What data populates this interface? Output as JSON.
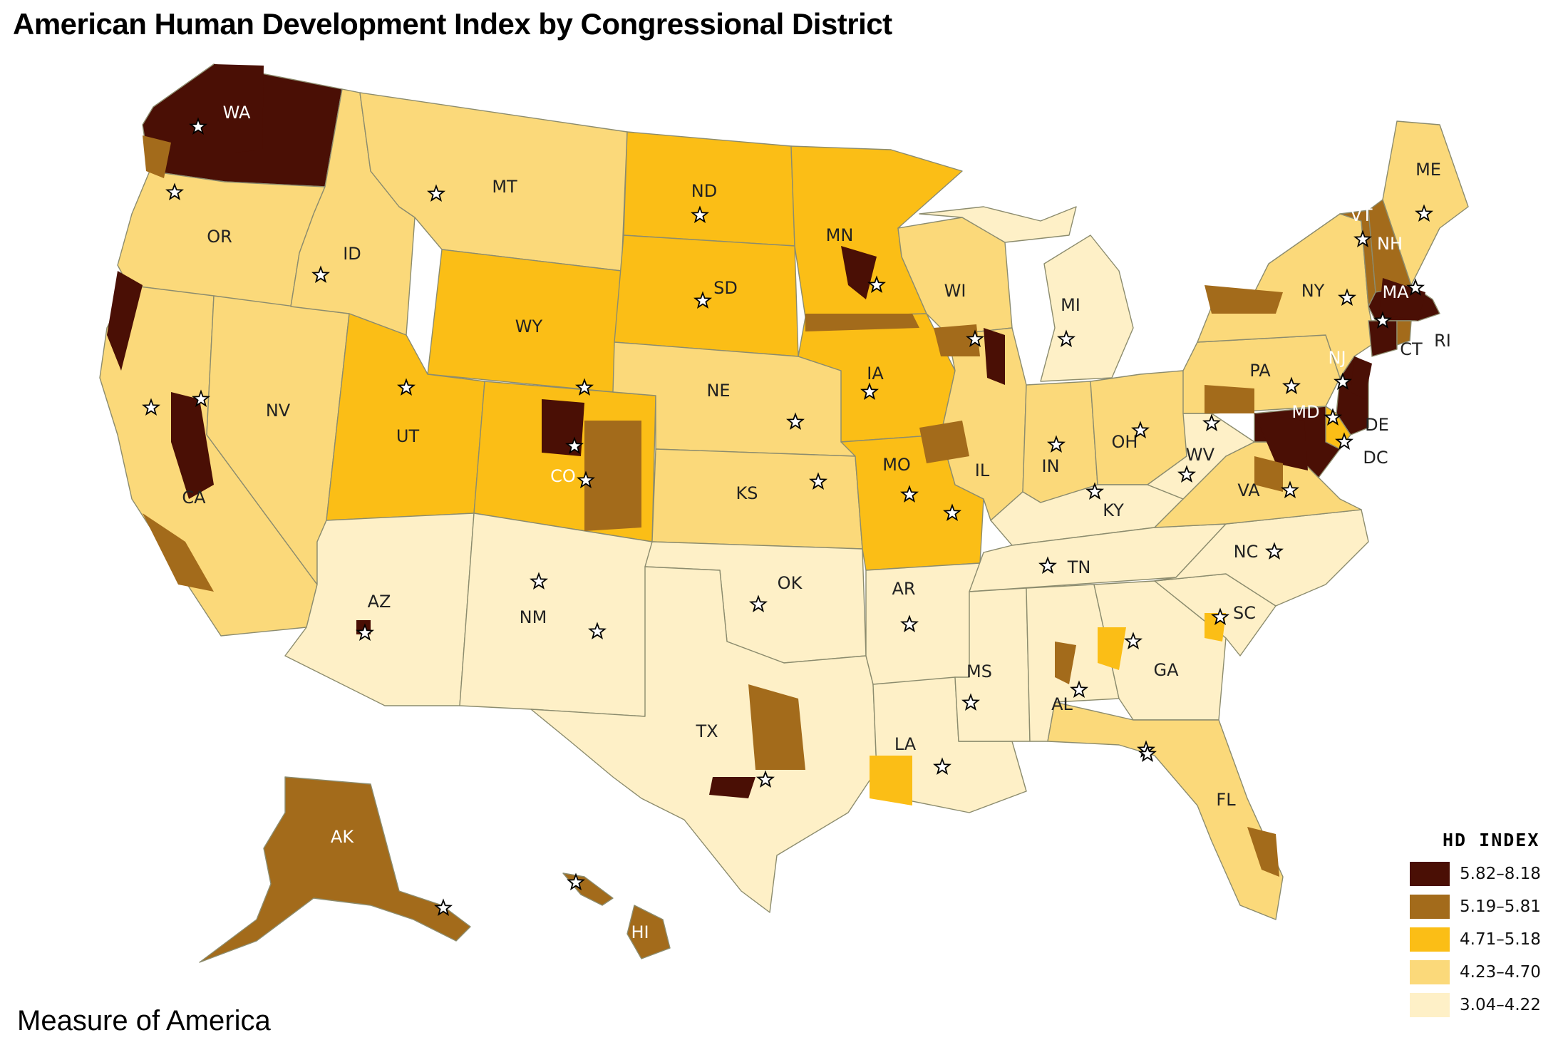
{
  "title": "American Human Development Index by Congressional District",
  "credit": "Measure of America",
  "legend": {
    "title": "HD INDEX",
    "items": [
      {
        "label": "5.82–8.18",
        "color": "#4a0f05"
      },
      {
        "label": "5.19–5.81",
        "color": "#a36b1b"
      },
      {
        "label": "4.71–5.18",
        "color": "#fbbe16"
      },
      {
        "label": "4.23–4.70",
        "color": "#fbd97a"
      },
      {
        "label": "3.04–4.22",
        "color": "#fef0c7"
      }
    ]
  },
  "states": [
    {
      "abbr": "WA",
      "level": 1
    },
    {
      "abbr": "OR",
      "level": 4
    },
    {
      "abbr": "CA",
      "level": 4
    },
    {
      "abbr": "ID",
      "level": 4
    },
    {
      "abbr": "NV",
      "level": 4
    },
    {
      "abbr": "MT",
      "level": 4
    },
    {
      "abbr": "WY",
      "level": 3
    },
    {
      "abbr": "UT",
      "level": 3
    },
    {
      "abbr": "AZ",
      "level": 5
    },
    {
      "abbr": "CO",
      "level": 3
    },
    {
      "abbr": "NM",
      "level": 5
    },
    {
      "abbr": "ND",
      "level": 3
    },
    {
      "abbr": "SD",
      "level": 3
    },
    {
      "abbr": "NE",
      "level": 4
    },
    {
      "abbr": "KS",
      "level": 4
    },
    {
      "abbr": "OK",
      "level": 5
    },
    {
      "abbr": "TX",
      "level": 5
    },
    {
      "abbr": "MN",
      "level": 3
    },
    {
      "abbr": "IA",
      "level": 3
    },
    {
      "abbr": "MO",
      "level": 3
    },
    {
      "abbr": "AR",
      "level": 5
    },
    {
      "abbr": "LA",
      "level": 5
    },
    {
      "abbr": "WI",
      "level": 4
    },
    {
      "abbr": "IL",
      "level": 4
    },
    {
      "abbr": "MI",
      "level": 5
    },
    {
      "abbr": "IN",
      "level": 4
    },
    {
      "abbr": "OH",
      "level": 4
    },
    {
      "abbr": "KY",
      "level": 5
    },
    {
      "abbr": "TN",
      "level": 5
    },
    {
      "abbr": "MS",
      "level": 5
    },
    {
      "abbr": "AL",
      "level": 5
    },
    {
      "abbr": "GA",
      "level": 5
    },
    {
      "abbr": "FL",
      "level": 4
    },
    {
      "abbr": "SC",
      "level": 5
    },
    {
      "abbr": "NC",
      "level": 5
    },
    {
      "abbr": "VA",
      "level": 4
    },
    {
      "abbr": "WV",
      "level": 5
    },
    {
      "abbr": "PA",
      "level": 4
    },
    {
      "abbr": "NY",
      "level": 4
    },
    {
      "abbr": "VT",
      "level": 2
    },
    {
      "abbr": "NH",
      "level": 2
    },
    {
      "abbr": "ME",
      "level": 4
    },
    {
      "abbr": "MA",
      "level": 1
    },
    {
      "abbr": "RI",
      "level": 2
    },
    {
      "abbr": "CT",
      "level": 1
    },
    {
      "abbr": "NJ",
      "level": 1
    },
    {
      "abbr": "DE",
      "level": 3
    },
    {
      "abbr": "MD",
      "level": 1
    },
    {
      "abbr": "DC",
      "level": 1
    },
    {
      "abbr": "AK",
      "level": 2
    },
    {
      "abbr": "HI",
      "level": 2
    }
  ]
}
